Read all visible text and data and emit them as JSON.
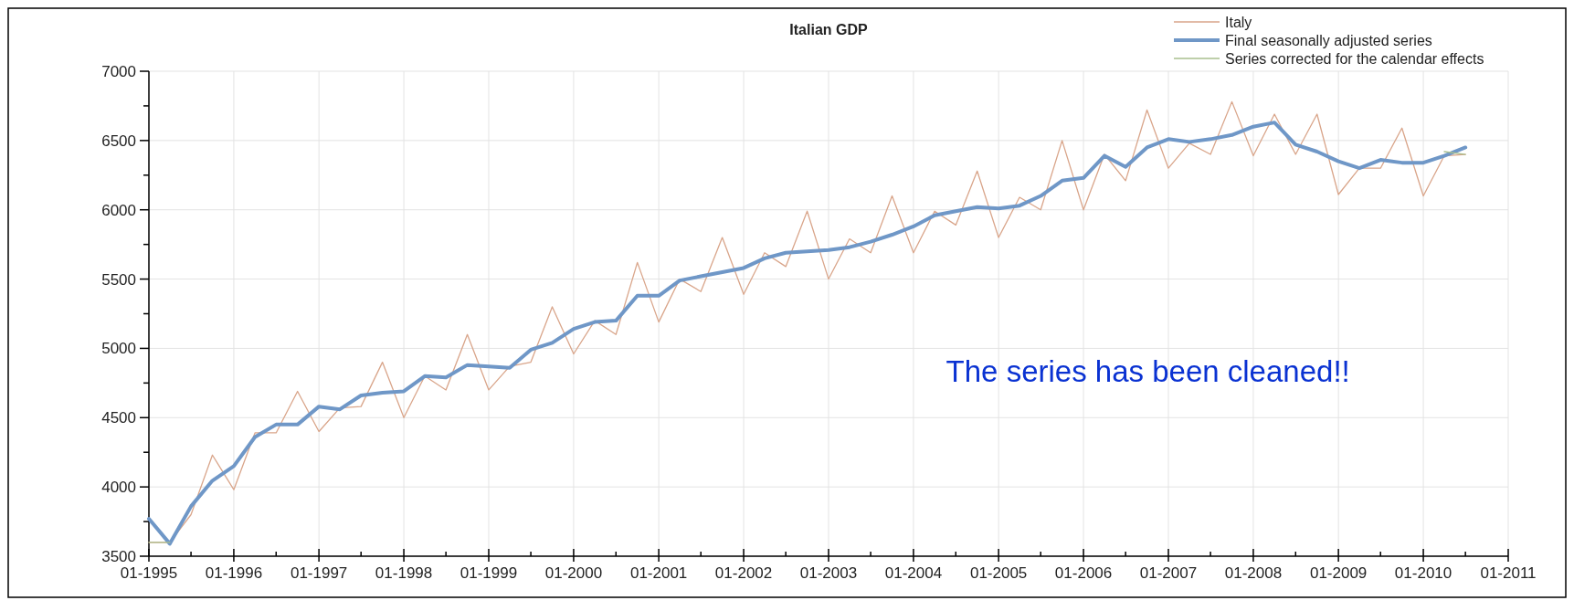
{
  "chart_data": {
    "type": "line",
    "title": "Italian GDP",
    "x": [
      "1995-01",
      "1995-04",
      "1995-07",
      "1995-10",
      "1996-01",
      "1996-04",
      "1996-07",
      "1996-10",
      "1997-01",
      "1997-04",
      "1997-07",
      "1997-10",
      "1998-01",
      "1998-04",
      "1998-07",
      "1998-10",
      "1999-01",
      "1999-04",
      "1999-07",
      "1999-10",
      "2000-01",
      "2000-04",
      "2000-07",
      "2000-10",
      "2001-01",
      "2001-04",
      "2001-07",
      "2001-10",
      "2002-01",
      "2002-04",
      "2002-07",
      "2002-10",
      "2003-01",
      "2003-04",
      "2003-07",
      "2003-10",
      "2004-01",
      "2004-04",
      "2004-07",
      "2004-10",
      "2005-01",
      "2005-04",
      "2005-07",
      "2005-10",
      "2006-01",
      "2006-04",
      "2006-07",
      "2006-10",
      "2007-01",
      "2007-04",
      "2007-07",
      "2007-10",
      "2008-01",
      "2008-04",
      "2008-07",
      "2008-10",
      "2009-01",
      "2009-04",
      "2009-07",
      "2009-10",
      "2010-01",
      "2010-04",
      "2010-07"
    ],
    "series": [
      {
        "name": "Italy",
        "color": "#d9a58a",
        "values": [
          3600,
          3600,
          3800,
          4230,
          3980,
          4390,
          4390,
          4690,
          4400,
          4570,
          4580,
          4900,
          4500,
          4800,
          4700,
          5100,
          4700,
          4870,
          4900,
          5300,
          4960,
          5200,
          5100,
          5620,
          5190,
          5500,
          5410,
          5800,
          5390,
          5690,
          5590,
          5990,
          5500,
          5790,
          5690,
          6100,
          5690,
          5990,
          5890,
          6280,
          5800,
          6090,
          6000,
          6500,
          6000,
          6400,
          6210,
          6720,
          6300,
          6480,
          6400,
          6780,
          6390,
          6690,
          6400,
          6690,
          6110,
          6300,
          6300,
          6590,
          6100,
          6390,
          6400
        ]
      },
      {
        "name": "Final seasonally adjusted series",
        "color": "#6f97c7",
        "values": [
          3770,
          3590,
          3860,
          4045,
          4150,
          4360,
          4450,
          4450,
          4580,
          4560,
          4660,
          4680,
          4690,
          4800,
          4790,
          4880,
          4870,
          4860,
          4990,
          5040,
          5140,
          5190,
          5200,
          5380,
          5380,
          5490,
          5520,
          5550,
          5580,
          5650,
          5690,
          5700,
          5710,
          5730,
          5770,
          5820,
          5880,
          5960,
          5990,
          6020,
          6010,
          6030,
          6100,
          6210,
          6230,
          6390,
          6310,
          6450,
          6510,
          6490,
          6510,
          6540,
          6600,
          6630,
          6470,
          6420,
          6350,
          6300,
          6360,
          6340,
          6340,
          6390,
          6450
        ]
      },
      {
        "name": "Series corrected for the calendar effects",
        "color": "#a9bf8e",
        "values": [
          3600,
          3600,
          null,
          null,
          null,
          null,
          null,
          null,
          null,
          null,
          null,
          null,
          null,
          null,
          null,
          null,
          null,
          null,
          null,
          null,
          null,
          null,
          null,
          null,
          null,
          null,
          null,
          null,
          null,
          null,
          null,
          null,
          null,
          null,
          null,
          null,
          null,
          null,
          null,
          null,
          null,
          null,
          null,
          null,
          null,
          null,
          null,
          null,
          null,
          null,
          null,
          null,
          null,
          null,
          null,
          null,
          null,
          null,
          null,
          null,
          null,
          6420,
          6400
        ]
      }
    ],
    "xlim": [
      "1995-01",
      "2011-01"
    ],
    "xticks": [
      {
        "value": "1995-01",
        "label": "01-1995"
      },
      {
        "value": "1995-07",
        "label": null
      },
      {
        "value": "1996-01",
        "label": "01-1996"
      },
      {
        "value": "1996-07",
        "label": null
      },
      {
        "value": "1997-01",
        "label": "01-1997"
      },
      {
        "value": "1997-07",
        "label": null
      },
      {
        "value": "1998-01",
        "label": "01-1998"
      },
      {
        "value": "1998-07",
        "label": null
      },
      {
        "value": "1999-01",
        "label": "01-1999"
      },
      {
        "value": "1999-07",
        "label": null
      },
      {
        "value": "2000-01",
        "label": "01-2000"
      },
      {
        "value": "2000-07",
        "label": null
      },
      {
        "value": "2001-01",
        "label": "01-2001"
      },
      {
        "value": "2001-07",
        "label": null
      },
      {
        "value": "2002-01",
        "label": "01-2002"
      },
      {
        "value": "2002-07",
        "label": null
      },
      {
        "value": "2003-01",
        "label": "01-2003"
      },
      {
        "value": "2003-07",
        "label": null
      },
      {
        "value": "2004-01",
        "label": "01-2004"
      },
      {
        "value": "2004-07",
        "label": null
      },
      {
        "value": "2005-01",
        "label": "01-2005"
      },
      {
        "value": "2005-07",
        "label": null
      },
      {
        "value": "2006-01",
        "label": "01-2006"
      },
      {
        "value": "2006-07",
        "label": null
      },
      {
        "value": "2007-01",
        "label": "01-2007"
      },
      {
        "value": "2007-07",
        "label": null
      },
      {
        "value": "2008-01",
        "label": "01-2008"
      },
      {
        "value": "2008-07",
        "label": null
      },
      {
        "value": "2009-01",
        "label": "01-2009"
      },
      {
        "value": "2009-07",
        "label": null
      },
      {
        "value": "2010-01",
        "label": "01-2010"
      },
      {
        "value": "2010-07",
        "label": null
      },
      {
        "value": "2011-01",
        "label": "01-2011"
      }
    ],
    "ylim": [
      3500,
      7000
    ],
    "yticks": [
      3500,
      {
        "value": 3750,
        "label": null
      },
      4000,
      {
        "value": 4250,
        "label": null
      },
      4500,
      {
        "value": 4750,
        "label": null
      },
      5000,
      {
        "value": 5250,
        "label": null
      },
      5500,
      {
        "value": 5750,
        "label": null
      },
      6000,
      {
        "value": 6250,
        "label": null
      },
      6500,
      {
        "value": 6750,
        "label": null
      },
      7000
    ],
    "grid": true,
    "legend": "top right",
    "line_style": "solid",
    "annotations": [
      "The series has been cleaned!!"
    ]
  }
}
